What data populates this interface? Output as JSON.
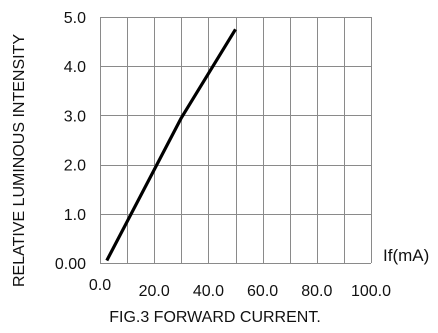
{
  "chart_data": {
    "type": "line",
    "caption": "FIG.3 FORWARD CURRENT.",
    "xlabel": "If(mA)",
    "ylabel": "RELATIVE LUMINOUS INTENSITY",
    "xlim": [
      0,
      100
    ],
    "ylim": [
      0,
      5
    ],
    "x_ticks": [
      0,
      20,
      40,
      60,
      80,
      100
    ],
    "x_tick_labels": [
      "0.0",
      "20.0",
      "40.0",
      "60.0",
      "80.0",
      "100.0"
    ],
    "y_ticks": [
      0,
      1,
      2,
      3,
      4,
      5
    ],
    "y_tick_labels": [
      "0.00",
      "1.0",
      "2.0",
      "3.0",
      "4.0",
      "5.0"
    ],
    "x_grid_step": 10,
    "y_grid_step": 1,
    "grid": true,
    "series": [
      {
        "x": [
          2.5,
          30.0,
          50.0
        ],
        "y": [
          0.05,
          2.95,
          4.75
        ],
        "color": "#000000"
      }
    ]
  }
}
